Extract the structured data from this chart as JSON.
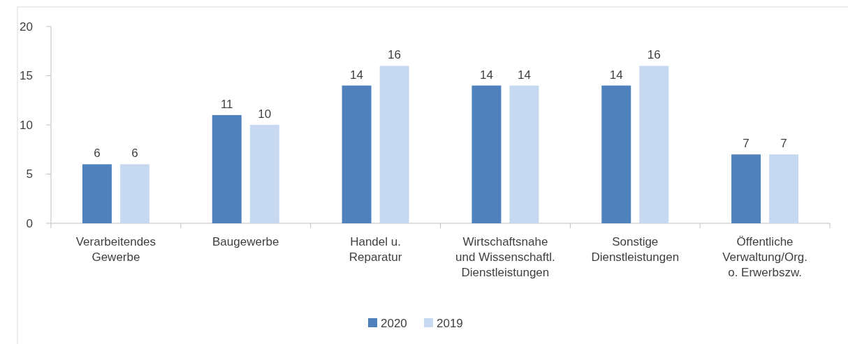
{
  "chart_data": {
    "type": "bar",
    "categories": [
      "Verarbeitendes\nGewerbe",
      "Baugewerbe",
      "Handel u.\nReparatur",
      "Wirtschaftsnahe\nund Wissenschaftl.\nDienstleistungen",
      "Sonstige\nDienstleistungen",
      "Öffentliche\nVerwaltung/Org.\no. Erwerbszw."
    ],
    "series": [
      {
        "name": "2020",
        "color": "#4f81bd",
        "values": [
          6,
          11,
          14,
          14,
          14,
          7
        ]
      },
      {
        "name": "2019",
        "color": "#c6d9f0",
        "values": [
          6,
          10,
          16,
          14,
          16,
          7
        ]
      }
    ],
    "ylim": [
      0,
      20
    ],
    "yticks": [
      0,
      5,
      10,
      15,
      20
    ],
    "data_labels": true,
    "legend": "bottom"
  }
}
